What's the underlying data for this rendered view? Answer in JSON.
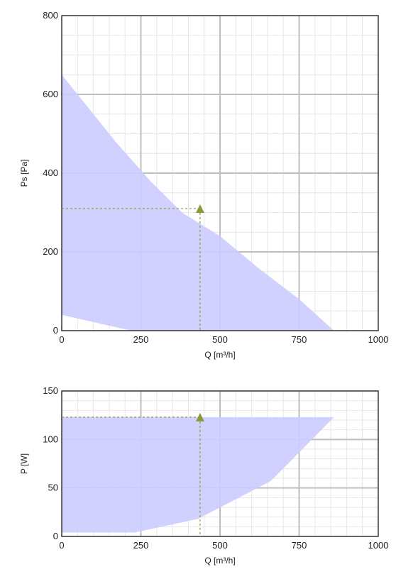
{
  "colors": {
    "background": "#ffffff",
    "major_grid": "#bfbfbf",
    "minor_grid": "#e6e6e6",
    "frame": "#333333",
    "region_fill": "#ccccff",
    "operating_point": "#8a9a3b"
  },
  "chart_data": [
    {
      "type": "area",
      "xlabel": "Q [m³/h]",
      "ylabel": "Ps [Pa]",
      "xlim": [
        0,
        1000
      ],
      "ylim": [
        0,
        800
      ],
      "x_ticks": [
        "0",
        "250",
        "500",
        "750",
        "1000"
      ],
      "y_ticks": [
        "0",
        "200",
        "400",
        "600",
        "800"
      ],
      "grid": true,
      "region": [
        {
          "x": 0,
          "y": 650
        },
        {
          "x": 80,
          "y": 570
        },
        {
          "x": 170,
          "y": 480
        },
        {
          "x": 280,
          "y": 380
        },
        {
          "x": 380,
          "y": 300
        },
        {
          "x": 500,
          "y": 240
        },
        {
          "x": 620,
          "y": 160
        },
        {
          "x": 750,
          "y": 80
        },
        {
          "x": 860,
          "y": 0
        },
        {
          "x": 220,
          "y": 0
        },
        {
          "x": 0,
          "y": 40
        }
      ],
      "operating_point": {
        "x": 437,
        "y": 310
      }
    },
    {
      "type": "area",
      "xlabel": "Q [m³/h]",
      "ylabel": "P [W]",
      "xlim": [
        0,
        1000
      ],
      "ylim": [
        0,
        150
      ],
      "x_ticks": [
        "0",
        "250",
        "500",
        "750",
        "1000"
      ],
      "y_ticks": [
        "0",
        "50",
        "100",
        "150"
      ],
      "grid": true,
      "region": [
        {
          "x": 0,
          "y": 123
        },
        {
          "x": 860,
          "y": 123
        },
        {
          "x": 700,
          "y": 70
        },
        {
          "x": 660,
          "y": 57
        },
        {
          "x": 430,
          "y": 18
        },
        {
          "x": 230,
          "y": 4
        },
        {
          "x": 0,
          "y": 4
        }
      ],
      "operating_point": {
        "x": 437,
        "y": 123
      }
    }
  ]
}
